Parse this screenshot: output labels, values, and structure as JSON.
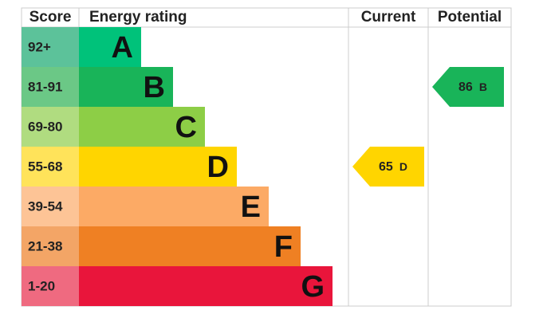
{
  "header": {
    "score": "Score",
    "rating": "Energy rating",
    "current": "Current",
    "potential": "Potential"
  },
  "bands": [
    {
      "score": "92+",
      "letter": "A",
      "color": "#00c27a",
      "score_color": "#5cc29a"
    },
    {
      "score": "81-91",
      "letter": "B",
      "color": "#19b459",
      "score_color": "#6bc886"
    },
    {
      "score": "69-80",
      "letter": "C",
      "color": "#8dce46",
      "score_color": "#b0dc80"
    },
    {
      "score": "55-68",
      "letter": "D",
      "color": "#ffd500",
      "score_color": "#ffe35a"
    },
    {
      "score": "39-54",
      "letter": "E",
      "color": "#fcaa65",
      "score_color": "#fdc496"
    },
    {
      "score": "21-38",
      "letter": "F",
      "color": "#ef8023",
      "score_color": "#f3a566"
    },
    {
      "score": "1-20",
      "letter": "G",
      "color": "#e9153b",
      "score_color": "#ef6a80"
    }
  ],
  "current": {
    "value": 65,
    "letter": "D"
  },
  "potential": {
    "value": 86,
    "letter": "B"
  }
}
